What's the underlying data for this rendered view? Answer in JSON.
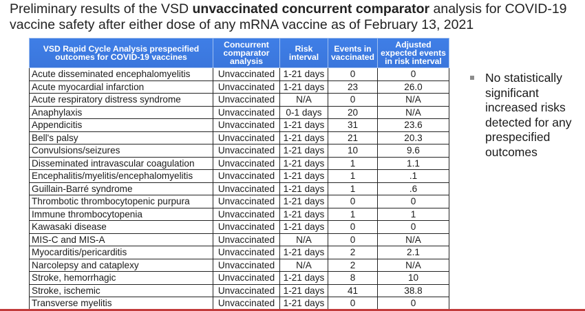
{
  "title": {
    "part1": "Preliminary results of the VSD ",
    "bold": "unvaccinated concurrent comparator",
    "part2": " analysis for COVID-19 vaccine safety after either dose of any mRNA vaccine as of February 13, 2021"
  },
  "table": {
    "headers": [
      "VSD Rapid Cycle Analysis prespecified outcomes for COVID-19 vaccines",
      "Concurrent comparator analysis",
      "Risk interval",
      "Events in vaccinated",
      "Adjusted expected events in risk interval"
    ],
    "rows": [
      [
        "Acute disseminated encephalomyelitis",
        "Unvaccinated",
        "1-21 days",
        "0",
        "0"
      ],
      [
        "Acute myocardial infarction",
        "Unvaccinated",
        "1-21 days",
        "23",
        "26.0"
      ],
      [
        "Acute respiratory distress syndrome",
        "Unvaccinated",
        "N/A",
        "0",
        "N/A"
      ],
      [
        "Anaphylaxis",
        "Unvaccinated",
        "0-1 days",
        "20",
        "N/A"
      ],
      [
        "Appendicitis",
        "Unvaccinated",
        "1-21 days",
        "31",
        "23.6"
      ],
      [
        "Bell's palsy",
        "Unvaccinated",
        "1-21 days",
        "21",
        "20.3"
      ],
      [
        "Convulsions/seizures",
        "Unvaccinated",
        "1-21 days",
        "10",
        "9.6"
      ],
      [
        "Disseminated intravascular coagulation",
        "Unvaccinated",
        "1-21 days",
        "1",
        "1.1"
      ],
      [
        "Encephalitis/myelitis/encephalomyelitis",
        "Unvaccinated",
        "1-21 days",
        "1",
        ".1"
      ],
      [
        "Guillain-Barré syndrome",
        "Unvaccinated",
        "1-21 days",
        "1",
        ".6"
      ],
      [
        "Thrombotic thrombocytopenic purpura",
        "Unvaccinated",
        "1-21 days",
        "0",
        "0"
      ],
      [
        "Immune thrombocytopenia",
        "Unvaccinated",
        "1-21 days",
        "1",
        "1"
      ],
      [
        "Kawasaki disease",
        "Unvaccinated",
        "1-21 days",
        "0",
        "0"
      ],
      [
        "MIS-C and MIS-A",
        "Unvaccinated",
        "N/A",
        "0",
        "N/A"
      ],
      [
        "Myocarditis/pericarditis",
        "Unvaccinated",
        "1-21 days",
        "2",
        "2.1"
      ],
      [
        "Narcolepsy and cataplexy",
        "Unvaccinated",
        "N/A",
        "2",
        "N/A"
      ],
      [
        "Stroke, hemorrhagic",
        "Unvaccinated",
        "1-21 days",
        "8",
        "10"
      ],
      [
        "Stroke, ischemic",
        "Unvaccinated",
        "1-21 days",
        "41",
        "38.8"
      ],
      [
        "Transverse myelitis",
        "Unvaccinated",
        "1-21 days",
        "0",
        "0"
      ]
    ]
  },
  "bullet": {
    "text": "No statistically significant increased risks detected for any prespecified outcomes"
  },
  "colors": {
    "header_bg": "#3f7ee6",
    "bottom_accent": "#c23b3b"
  }
}
